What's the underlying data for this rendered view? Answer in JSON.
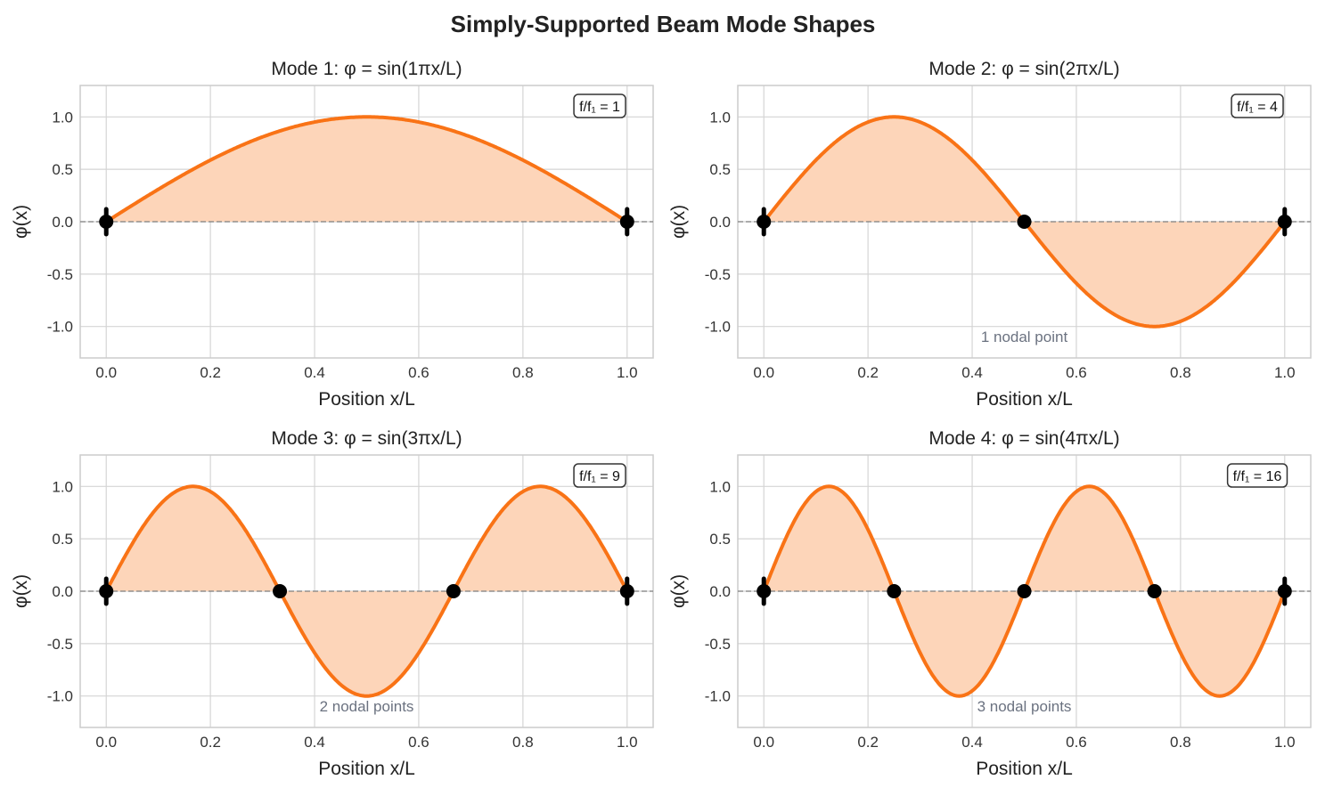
{
  "chart_data": {
    "title": "Simply-Supported Beam Mode Shapes",
    "type": "line",
    "colors": {
      "curve": "#f97316",
      "fill": "#fdd5b9",
      "node": "#000000",
      "baseline": "#808080",
      "annotation": "#6b7280"
    },
    "grid": true,
    "panels": [
      {
        "title": "Mode 1: φ = sin(1πx/L)",
        "mode": 1,
        "freq_label": "f/f₁ = 1",
        "nodal_label": "",
        "xlabel": "Position x/L",
        "ylabel": "φ(x)",
        "xlim": [
          -0.05,
          1.05
        ],
        "ylim": [
          -1.3,
          1.3
        ],
        "xticks": [
          "0.0",
          "0.2",
          "0.4",
          "0.6",
          "0.8",
          "1.0"
        ],
        "yticks": [
          "-1.0",
          "-0.5",
          "0.0",
          "0.5",
          "1.0"
        ],
        "nodes": [
          0,
          1
        ]
      },
      {
        "title": "Mode 2: φ = sin(2πx/L)",
        "mode": 2,
        "freq_label": "f/f₁ = 4",
        "nodal_label": "1 nodal point",
        "xlabel": "Position x/L",
        "ylabel": "φ(x)",
        "xlim": [
          -0.05,
          1.05
        ],
        "ylim": [
          -1.3,
          1.3
        ],
        "xticks": [
          "0.0",
          "0.2",
          "0.4",
          "0.6",
          "0.8",
          "1.0"
        ],
        "yticks": [
          "-1.0",
          "-0.5",
          "0.0",
          "0.5",
          "1.0"
        ],
        "nodes": [
          0,
          0.5,
          1
        ]
      },
      {
        "title": "Mode 3: φ = sin(3πx/L)",
        "mode": 3,
        "freq_label": "f/f₁ = 9",
        "nodal_label": "2 nodal points",
        "xlabel": "Position x/L",
        "ylabel": "φ(x)",
        "xlim": [
          -0.05,
          1.05
        ],
        "ylim": [
          -1.3,
          1.3
        ],
        "xticks": [
          "0.0",
          "0.2",
          "0.4",
          "0.6",
          "0.8",
          "1.0"
        ],
        "yticks": [
          "-1.0",
          "-0.5",
          "0.0",
          "0.5",
          "1.0"
        ],
        "nodes": [
          0,
          0.3333,
          0.6667,
          1
        ]
      },
      {
        "title": "Mode 4: φ = sin(4πx/L)",
        "mode": 4,
        "freq_label": "f/f₁ = 16",
        "nodal_label": "3 nodal points",
        "xlabel": "Position x/L",
        "ylabel": "φ(x)",
        "xlim": [
          -0.05,
          1.05
        ],
        "ylim": [
          -1.3,
          1.3
        ],
        "xticks": [
          "0.0",
          "0.2",
          "0.4",
          "0.6",
          "0.8",
          "1.0"
        ],
        "yticks": [
          "-1.0",
          "-0.5",
          "0.0",
          "0.5",
          "1.0"
        ],
        "nodes": [
          0,
          0.25,
          0.5,
          0.75,
          1
        ]
      }
    ]
  }
}
